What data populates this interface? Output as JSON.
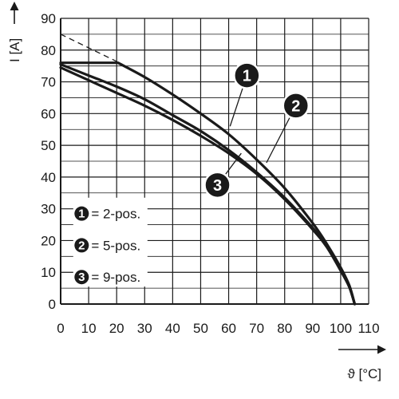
{
  "chart_data": {
    "type": "line",
    "title": "",
    "xlabel": "ϑ [°C]",
    "ylabel": "I [A]",
    "xlim": [
      0,
      110
    ],
    "ylim": [
      0,
      90
    ],
    "x_ticks": [
      0,
      10,
      20,
      30,
      40,
      50,
      60,
      70,
      80,
      90,
      100,
      110
    ],
    "y_ticks": [
      0,
      10,
      20,
      30,
      40,
      50,
      60,
      70,
      80,
      90
    ],
    "x_tick_labels": [
      "0",
      "10",
      "20",
      "30",
      "40",
      "50",
      "60",
      "70",
      "80",
      "90",
      "100",
      "110"
    ],
    "y_tick_labels": [
      "0",
      "10",
      "20",
      "30",
      "40",
      "50",
      "60",
      "70",
      "80",
      "90"
    ],
    "grid": true,
    "legend_position": "lower-left",
    "series": [
      {
        "name": "2-pos.",
        "marker": "1",
        "x": [
          0,
          20.5,
          30,
          40,
          50,
          60,
          70,
          80,
          90,
          95,
          100,
          103,
          105
        ],
        "y": [
          76,
          76,
          71.5,
          66,
          60,
          53.5,
          45.5,
          36.5,
          25.5,
          19,
          11.5,
          6,
          0
        ]
      },
      {
        "name": "5-pos.",
        "marker": "2",
        "x": [
          0,
          10,
          20,
          30,
          40,
          50,
          60,
          70,
          80,
          90,
          95,
          100,
          103,
          105
        ],
        "y": [
          75.5,
          72,
          68.5,
          64.5,
          59.5,
          54.5,
          48.5,
          41.5,
          33.5,
          24,
          18.5,
          11,
          6,
          0
        ]
      },
      {
        "name": "9-pos.",
        "marker": "3",
        "x": [
          0,
          10,
          20,
          30,
          40,
          50,
          60,
          70,
          80,
          90,
          95,
          100,
          103,
          105
        ],
        "y": [
          74.5,
          70.5,
          66.5,
          62.5,
          58,
          53,
          47.5,
          41,
          33,
          23.5,
          18,
          10.5,
          5.5,
          0
        ]
      }
    ],
    "dashed_line": {
      "x": [
        0,
        21
      ],
      "y": [
        85,
        76
      ]
    },
    "legend": [
      {
        "marker": "1",
        "text": "= 2-pos."
      },
      {
        "marker": "2",
        "text": "= 5-pos."
      },
      {
        "marker": "3",
        "text": "= 9-pos."
      }
    ],
    "callouts": [
      {
        "marker": "1",
        "center": [
          66.5,
          72
        ],
        "target": [
          60.5,
          56
        ]
      },
      {
        "marker": "2",
        "center": [
          84,
          62.5
        ],
        "target": [
          73.5,
          44.5
        ]
      },
      {
        "marker": "3",
        "center": [
          56,
          37.5
        ],
        "target": [
          64.5,
          47.5
        ]
      }
    ],
    "colors": {
      "line": "#1a1a1a",
      "grid": "#1a1a1a",
      "background": "#ffffff"
    }
  }
}
